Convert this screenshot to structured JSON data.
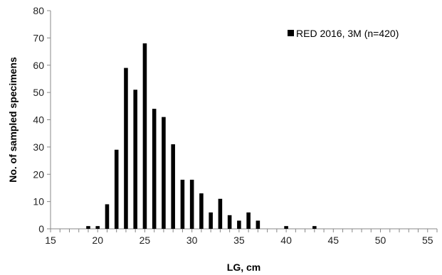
{
  "chart_data": {
    "type": "bar",
    "title": "",
    "xlabel": "LG, cm",
    "ylabel": "No. of sampled specimens",
    "xlim": [
      15,
      56
    ],
    "ylim": [
      0,
      80
    ],
    "x_ticks": [
      15,
      20,
      25,
      30,
      35,
      40,
      45,
      50,
      55
    ],
    "y_ticks": [
      0,
      10,
      20,
      30,
      40,
      50,
      60,
      70,
      80
    ],
    "grid": false,
    "legend_position": "top-right",
    "series": [
      {
        "name": "RED 2016, 3M (n=420)",
        "color": "#000000",
        "x": [
          19,
          20,
          21,
          22,
          23,
          24,
          25,
          26,
          27,
          28,
          29,
          30,
          31,
          32,
          33,
          34,
          35,
          36,
          37,
          40,
          43
        ],
        "values": [
          1,
          1,
          9,
          29,
          59,
          51,
          68,
          44,
          41,
          31,
          18,
          18,
          13,
          6,
          11,
          5,
          3,
          6,
          3,
          1,
          1
        ]
      }
    ]
  }
}
